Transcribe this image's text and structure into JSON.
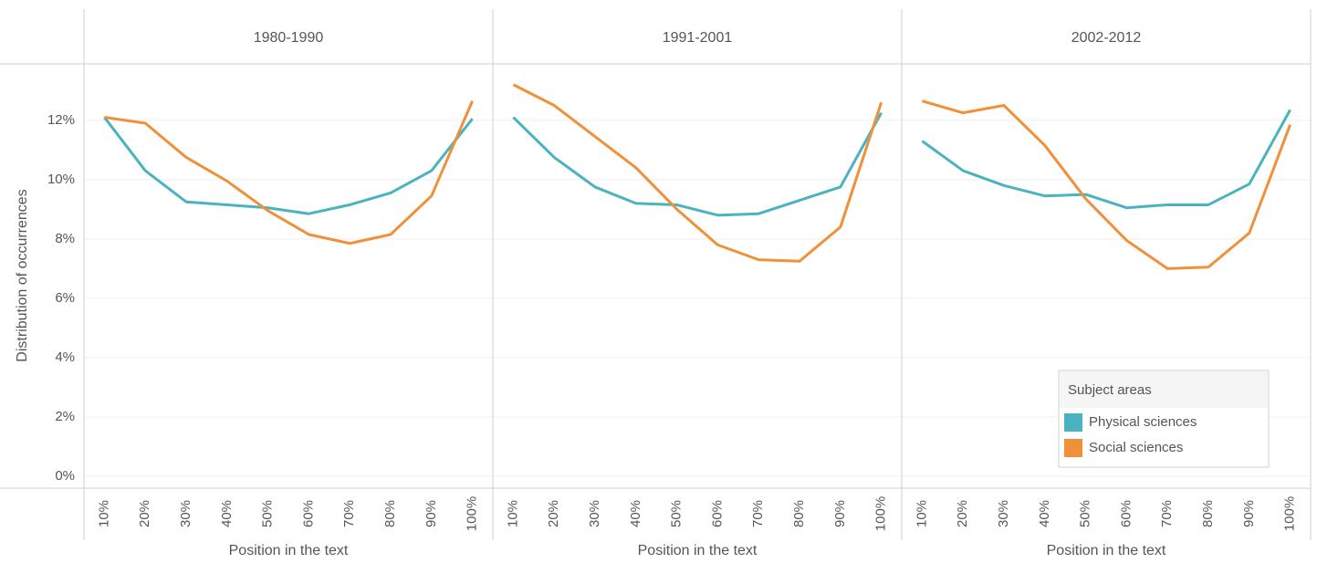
{
  "chart_data": [
    {
      "type": "line",
      "title": "1980-1990",
      "y_label": "Distribution of occurrences",
      "x_label": "Position in the text",
      "ylim": [
        -0.4,
        13.9
      ],
      "yticks": [
        {
          "value": 0,
          "label": "0%"
        },
        {
          "value": 2,
          "label": "2%"
        },
        {
          "value": 4,
          "label": "4%"
        },
        {
          "value": 6,
          "label": "6%"
        },
        {
          "value": 8,
          "label": "8%"
        },
        {
          "value": 10,
          "label": "10%"
        },
        {
          "value": 12,
          "label": "12%"
        }
      ],
      "grid": true,
      "categories": [
        "10%",
        "20%",
        "30%",
        "40%",
        "50%",
        "60%",
        "70%",
        "80%",
        "90%",
        "100%"
      ],
      "series": [
        {
          "color": "#4bb3bf",
          "values": [
            12.1,
            10.3,
            9.25,
            9.15,
            9.05,
            8.85,
            9.15,
            9.55,
            10.3,
            12.05
          ]
        },
        {
          "color": "#f0913a",
          "values": [
            12.1,
            11.9,
            10.75,
            9.95,
            8.95,
            8.15,
            7.85,
            8.15,
            9.45,
            12.65
          ]
        }
      ]
    },
    {
      "type": "line",
      "title": "1991-2001",
      "x_label": "Position in the text",
      "categories": [
        "10%",
        "20%",
        "30%",
        "40%",
        "50%",
        "60%",
        "70%",
        "80%",
        "90%",
        "100%"
      ],
      "series": [
        {
          "color": "#4bb3bf",
          "values": [
            12.1,
            10.75,
            9.75,
            9.2,
            9.15,
            8.8,
            8.85,
            9.3,
            9.75,
            12.25
          ]
        },
        {
          "color": "#f0913a",
          "values": [
            13.2,
            12.5,
            11.45,
            10.4,
            9.0,
            7.8,
            7.3,
            7.25,
            8.4,
            12.6
          ]
        }
      ]
    },
    {
      "type": "line",
      "title": "2002-2012",
      "x_label": "Position in the text",
      "legend_title": "Subject areas",
      "legend": "bottom-right",
      "categories": [
        "10%",
        "20%",
        "30%",
        "40%",
        "50%",
        "60%",
        "70%",
        "80%",
        "90%",
        "100%"
      ],
      "series": [
        {
          "name": "Physical sciences",
          "color": "#4bb3bf",
          "values": [
            11.3,
            10.3,
            9.8,
            9.45,
            9.5,
            9.05,
            9.15,
            9.15,
            9.85,
            12.35
          ]
        },
        {
          "name": "Social sciences",
          "color": "#f0913a",
          "values": [
            12.65,
            12.25,
            12.5,
            11.15,
            9.35,
            7.95,
            7.0,
            7.05,
            8.2,
            11.85
          ]
        }
      ]
    }
  ]
}
